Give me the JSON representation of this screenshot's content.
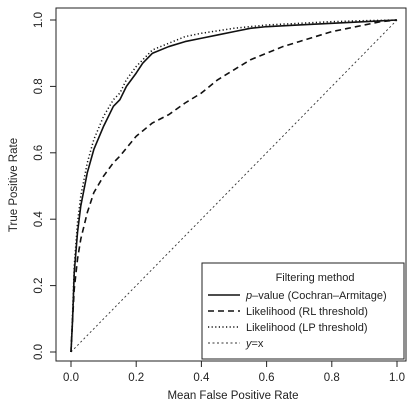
{
  "chart_data": {
    "type": "line",
    "title": "",
    "xlabel": "Mean False Positive Rate",
    "ylabel": "True Positive Rate",
    "xlim": [
      0,
      1
    ],
    "ylim": [
      0,
      1
    ],
    "x_ticks": [
      "0.0",
      "0.2",
      "0.4",
      "0.6",
      "0.8",
      "1.0"
    ],
    "y_ticks": [
      "0.0",
      "0.2",
      "0.4",
      "0.6",
      "0.8",
      "1.0"
    ],
    "grid": false,
    "legend": {
      "title": "Filtering method",
      "placement": "bottom-right",
      "entries": [
        {
          "prefix": "p",
          "text": "–value (Cochran–Armitage)",
          "style": "solid"
        },
        {
          "prefix": "",
          "text": "Likelihood (RL threshold)",
          "style": "dashed"
        },
        {
          "prefix": "",
          "text": "Likelihood (LP threshold)",
          "style": "dotted"
        },
        {
          "prefix": "y",
          "text": "=x",
          "style": "dotted-fine"
        }
      ]
    },
    "series": [
      {
        "name": "p–value (Cochran–Armitage)",
        "style": "solid",
        "x": [
          0,
          0.005,
          0.01,
          0.02,
          0.03,
          0.05,
          0.07,
          0.1,
          0.13,
          0.15,
          0.17,
          0.2,
          0.22,
          0.25,
          0.3,
          0.35,
          0.4,
          0.45,
          0.5,
          0.55,
          0.6,
          0.7,
          0.8,
          0.9,
          1.0
        ],
        "y": [
          0,
          0.1,
          0.24,
          0.36,
          0.44,
          0.54,
          0.61,
          0.68,
          0.74,
          0.76,
          0.8,
          0.84,
          0.87,
          0.9,
          0.92,
          0.935,
          0.945,
          0.955,
          0.965,
          0.975,
          0.98,
          0.985,
          0.99,
          0.995,
          1.0
        ]
      },
      {
        "name": "Likelihood (RL threshold)",
        "style": "dashed",
        "x": [
          0,
          0.005,
          0.01,
          0.02,
          0.03,
          0.05,
          0.07,
          0.1,
          0.13,
          0.15,
          0.2,
          0.25,
          0.3,
          0.35,
          0.4,
          0.45,
          0.5,
          0.55,
          0.6,
          0.65,
          0.7,
          0.75,
          0.8,
          0.85,
          0.9,
          0.95,
          1.0
        ],
        "y": [
          0,
          0.1,
          0.19,
          0.28,
          0.34,
          0.42,
          0.48,
          0.53,
          0.57,
          0.59,
          0.65,
          0.69,
          0.715,
          0.75,
          0.78,
          0.82,
          0.85,
          0.88,
          0.9,
          0.92,
          0.935,
          0.95,
          0.965,
          0.975,
          0.985,
          0.995,
          1.0
        ]
      },
      {
        "name": "Likelihood (LP threshold)",
        "style": "dotted",
        "x": [
          0,
          0.005,
          0.01,
          0.02,
          0.03,
          0.05,
          0.07,
          0.1,
          0.13,
          0.15,
          0.17,
          0.2,
          0.22,
          0.25,
          0.3,
          0.35,
          0.4,
          0.5,
          0.6,
          0.7,
          0.8,
          0.9,
          1.0
        ],
        "y": [
          0,
          0.12,
          0.26,
          0.39,
          0.47,
          0.57,
          0.64,
          0.71,
          0.76,
          0.78,
          0.82,
          0.86,
          0.88,
          0.91,
          0.93,
          0.95,
          0.96,
          0.975,
          0.985,
          0.99,
          0.995,
          0.998,
          1.0
        ]
      },
      {
        "name": "y=x",
        "style": "dotted-fine",
        "x": [
          0,
          1
        ],
        "y": [
          0,
          1
        ]
      }
    ]
  }
}
